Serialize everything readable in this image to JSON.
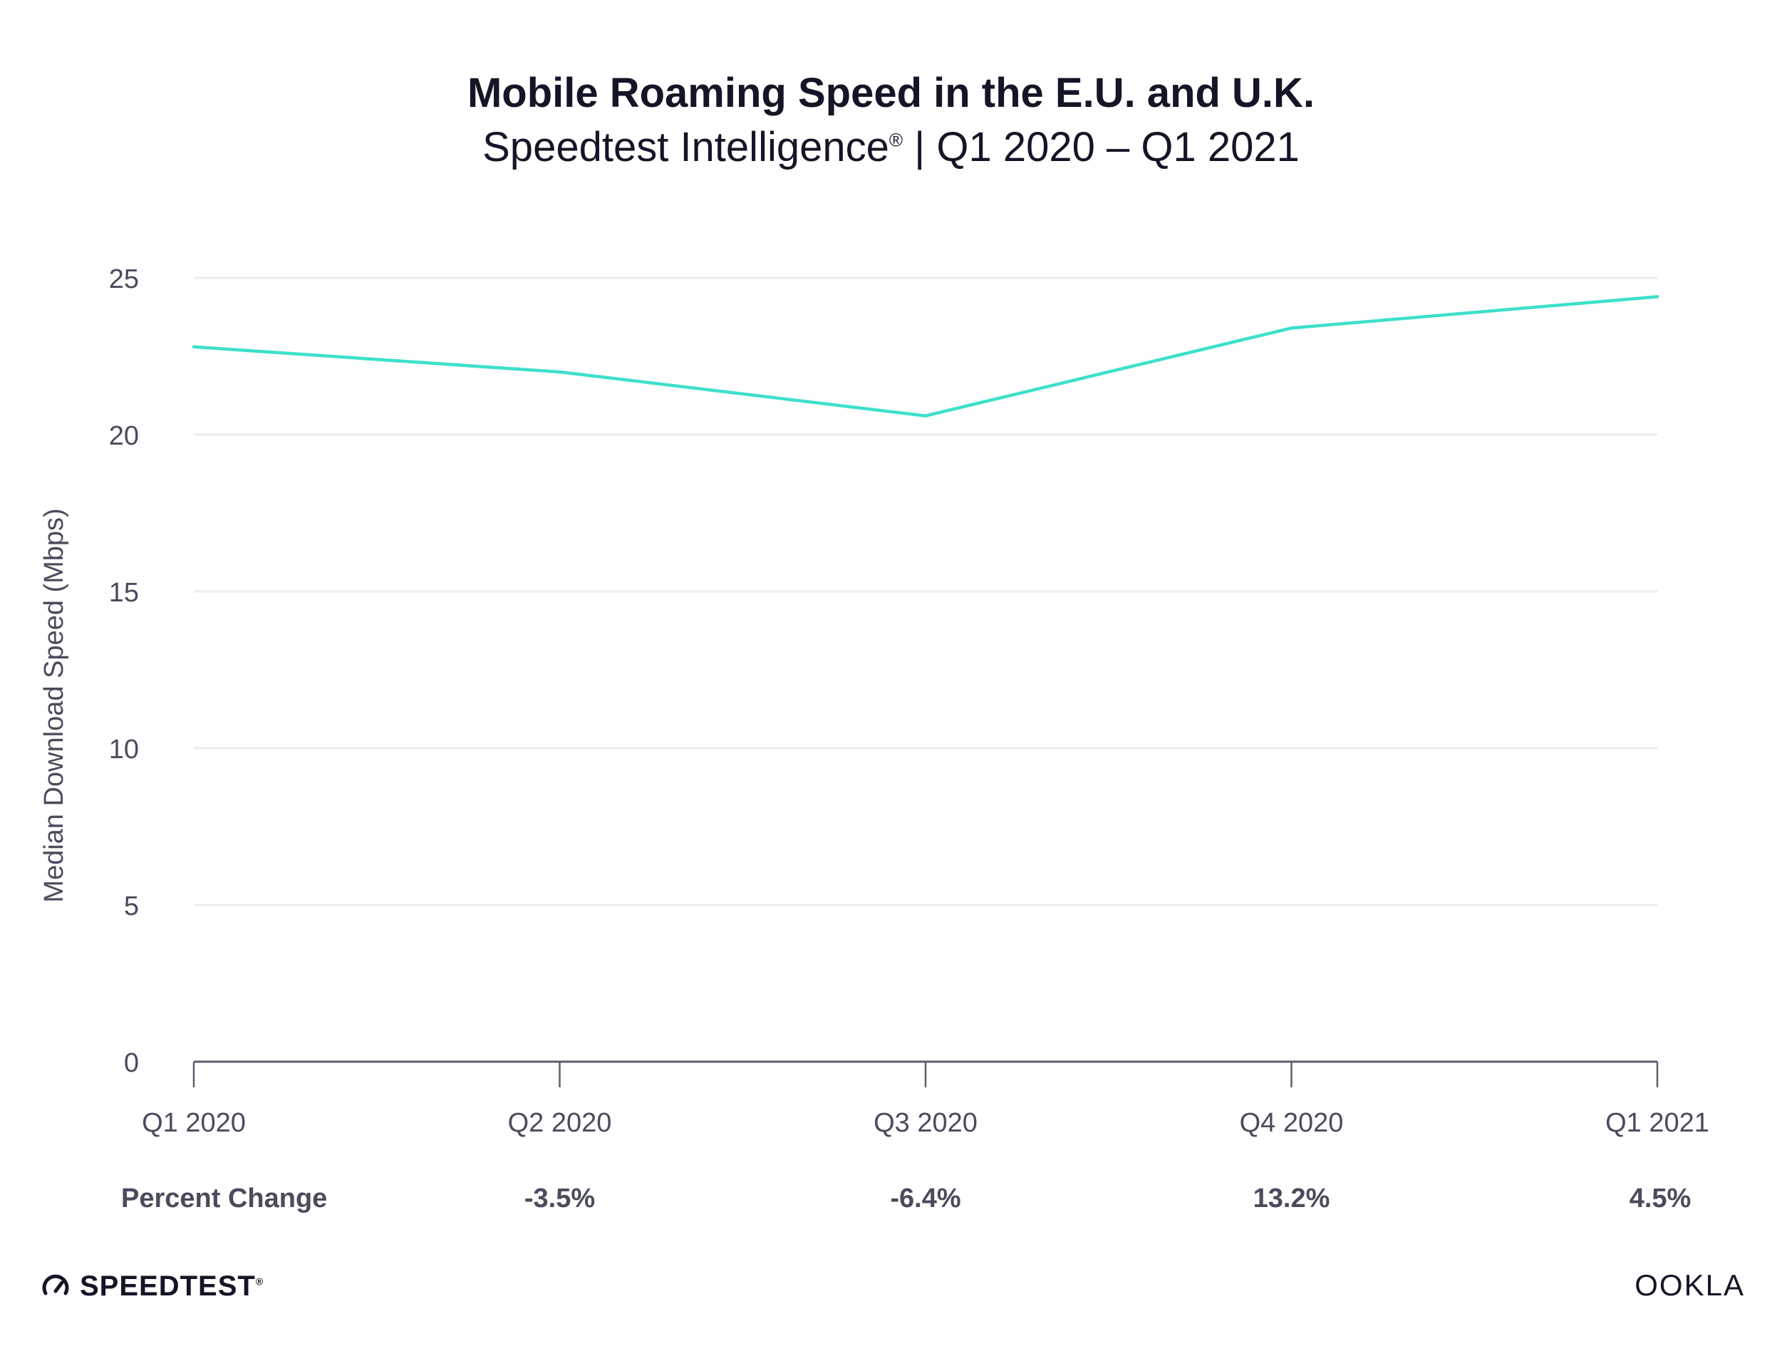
{
  "header": {
    "title": "Mobile Roaming Speed in the E.U. and U.K.",
    "subtitle_main": "Speedtest Intelligence",
    "subtitle_mark": "®",
    "subtitle_period": " | Q1 2020 – Q1 2021"
  },
  "chart_data": {
    "type": "line",
    "ylabel": "Median Download Speed (Mbps)",
    "xlabel": "",
    "categories": [
      "Q1 2020",
      "Q2 2020",
      "Q3 2020",
      "Q4 2020",
      "Q1 2021"
    ],
    "series": [
      {
        "values": [
          22.8,
          22.0,
          20.6,
          23.4,
          24.4
        ],
        "color": "#3de0cc"
      }
    ],
    "ylim": [
      0,
      25
    ],
    "yticks": [
      0,
      5,
      10,
      15,
      20,
      25
    ],
    "grid": true,
    "percent_change": {
      "label": "Percent Change",
      "values": [
        "",
        "-3.5%",
        "-6.4%",
        "13.2%",
        "4.5%"
      ]
    }
  },
  "footer": {
    "left_brand": "SPEEDTEST",
    "left_brand_mark": "®",
    "right_brand": "OOKLA"
  },
  "colors": {
    "line": "#3de0cc",
    "text": "#141526",
    "axis_text": "#4a4b5c",
    "grid": "#ececec",
    "axis": "#5d5e6c"
  }
}
